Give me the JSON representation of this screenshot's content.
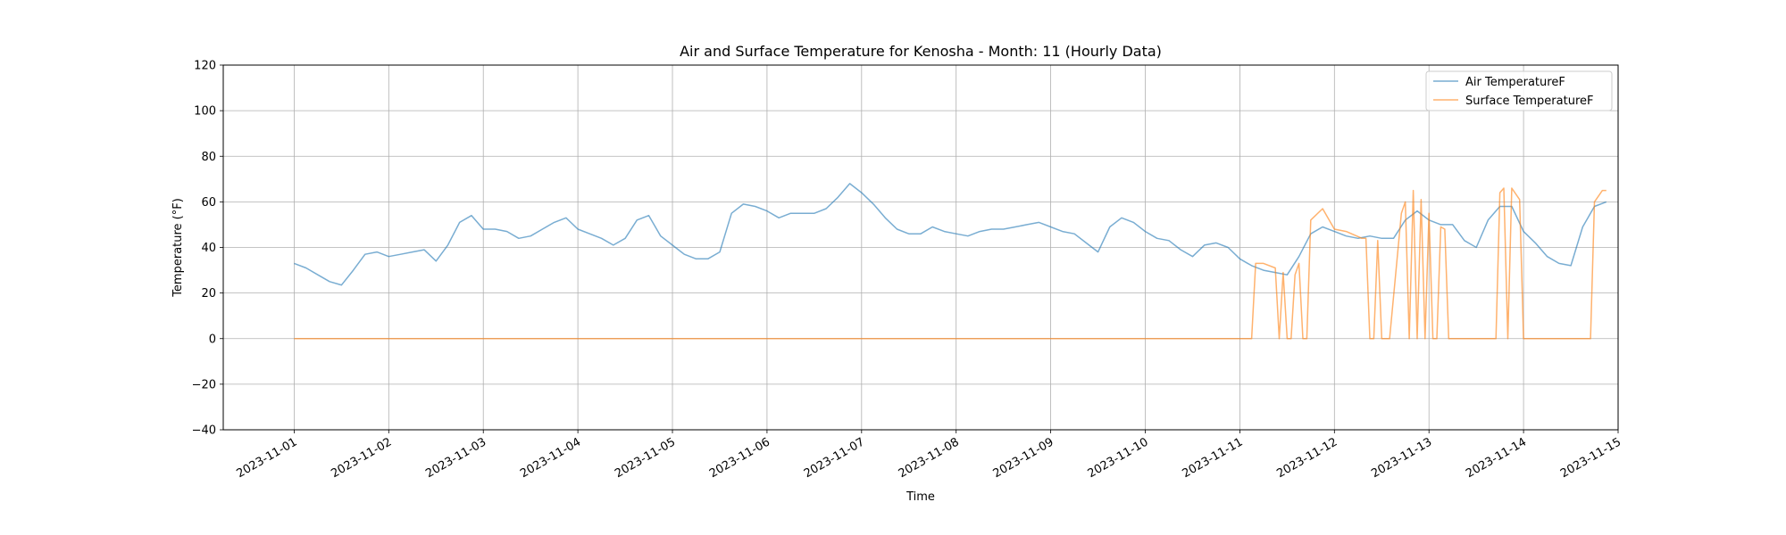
{
  "chart_data": {
    "type": "line",
    "title": "Air and Surface Temperature for Kenosha - Month: 11 (Hourly Data)",
    "xlabel": "Time",
    "ylabel": "Temperature (°F)",
    "ylim": [
      -40,
      120
    ],
    "xlim": [
      "2023-10-31T06:00",
      "2023-11-15T00:00"
    ],
    "y_ticks": [
      -40,
      -20,
      0,
      20,
      40,
      60,
      80,
      100,
      120
    ],
    "y_tick_labels": [
      "−40",
      "−20",
      "0",
      "20",
      "40",
      "60",
      "80",
      "100",
      "120"
    ],
    "x_ticks": [
      "2023-11-01",
      "2023-11-02",
      "2023-11-03",
      "2023-11-04",
      "2023-11-05",
      "2023-11-06",
      "2023-11-07",
      "2023-11-08",
      "2023-11-09",
      "2023-11-10",
      "2023-11-11",
      "2023-11-12",
      "2023-11-13",
      "2023-11-14",
      "2023-11-15"
    ],
    "grid": true,
    "legend_position": "top-right",
    "series": [
      {
        "name": "Air TemperatureF",
        "color": "#1f77b4",
        "points": [
          [
            "2023-11-01T00:00",
            33
          ],
          [
            "2023-11-01T03:00",
            31
          ],
          [
            "2023-11-01T06:00",
            28
          ],
          [
            "2023-11-01T09:00",
            25
          ],
          [
            "2023-11-01T12:00",
            23.5
          ],
          [
            "2023-11-01T15:00",
            30
          ],
          [
            "2023-11-01T18:00",
            37
          ],
          [
            "2023-11-01T21:00",
            38
          ],
          [
            "2023-11-02T00:00",
            36
          ],
          [
            "2023-11-02T03:00",
            37
          ],
          [
            "2023-11-02T06:00",
            38
          ],
          [
            "2023-11-02T09:00",
            39
          ],
          [
            "2023-11-02T12:00",
            34
          ],
          [
            "2023-11-02T15:00",
            41
          ],
          [
            "2023-11-02T18:00",
            51
          ],
          [
            "2023-11-02T21:00",
            54
          ],
          [
            "2023-11-03T00:00",
            48
          ],
          [
            "2023-11-03T03:00",
            48
          ],
          [
            "2023-11-03T06:00",
            47
          ],
          [
            "2023-11-03T09:00",
            44
          ],
          [
            "2023-11-03T12:00",
            45
          ],
          [
            "2023-11-03T15:00",
            48
          ],
          [
            "2023-11-03T18:00",
            51
          ],
          [
            "2023-11-03T21:00",
            53
          ],
          [
            "2023-11-04T00:00",
            48
          ],
          [
            "2023-11-04T03:00",
            46
          ],
          [
            "2023-11-04T06:00",
            44
          ],
          [
            "2023-11-04T09:00",
            41
          ],
          [
            "2023-11-04T12:00",
            44
          ],
          [
            "2023-11-04T15:00",
            52
          ],
          [
            "2023-11-04T18:00",
            54
          ],
          [
            "2023-11-04T21:00",
            45
          ],
          [
            "2023-11-05T00:00",
            41
          ],
          [
            "2023-11-05T03:00",
            37
          ],
          [
            "2023-11-05T06:00",
            35
          ],
          [
            "2023-11-05T09:00",
            35
          ],
          [
            "2023-11-05T12:00",
            38
          ],
          [
            "2023-11-05T15:00",
            55
          ],
          [
            "2023-11-05T18:00",
            59
          ],
          [
            "2023-11-05T21:00",
            58
          ],
          [
            "2023-11-06T00:00",
            56
          ],
          [
            "2023-11-06T03:00",
            53
          ],
          [
            "2023-11-06T06:00",
            55
          ],
          [
            "2023-11-06T09:00",
            55
          ],
          [
            "2023-11-06T12:00",
            55
          ],
          [
            "2023-11-06T15:00",
            57
          ],
          [
            "2023-11-06T18:00",
            62
          ],
          [
            "2023-11-06T21:00",
            68
          ],
          [
            "2023-11-07T00:00",
            64
          ],
          [
            "2023-11-07T03:00",
            59
          ],
          [
            "2023-11-07T06:00",
            53
          ],
          [
            "2023-11-07T09:00",
            48
          ],
          [
            "2023-11-07T12:00",
            46
          ],
          [
            "2023-11-07T15:00",
            46
          ],
          [
            "2023-11-07T18:00",
            49
          ],
          [
            "2023-11-07T21:00",
            47
          ],
          [
            "2023-11-08T00:00",
            46
          ],
          [
            "2023-11-08T03:00",
            45
          ],
          [
            "2023-11-08T06:00",
            47
          ],
          [
            "2023-11-08T09:00",
            48
          ],
          [
            "2023-11-08T12:00",
            48
          ],
          [
            "2023-11-08T15:00",
            49
          ],
          [
            "2023-11-08T18:00",
            50
          ],
          [
            "2023-11-08T21:00",
            51
          ],
          [
            "2023-11-09T00:00",
            49
          ],
          [
            "2023-11-09T03:00",
            47
          ],
          [
            "2023-11-09T06:00",
            46
          ],
          [
            "2023-11-09T09:00",
            42
          ],
          [
            "2023-11-09T12:00",
            38
          ],
          [
            "2023-11-09T15:00",
            49
          ],
          [
            "2023-11-09T18:00",
            53
          ],
          [
            "2023-11-09T21:00",
            51
          ],
          [
            "2023-11-10T00:00",
            47
          ],
          [
            "2023-11-10T03:00",
            44
          ],
          [
            "2023-11-10T06:00",
            43
          ],
          [
            "2023-11-10T09:00",
            39
          ],
          [
            "2023-11-10T12:00",
            36
          ],
          [
            "2023-11-10T15:00",
            41
          ],
          [
            "2023-11-10T18:00",
            42
          ],
          [
            "2023-11-10T21:00",
            40
          ],
          [
            "2023-11-11T00:00",
            35
          ],
          [
            "2023-11-11T03:00",
            32
          ],
          [
            "2023-11-11T06:00",
            30
          ],
          [
            "2023-11-11T09:00",
            29
          ],
          [
            "2023-11-11T12:00",
            28
          ],
          [
            "2023-11-11T15:00",
            36
          ],
          [
            "2023-11-11T18:00",
            46
          ],
          [
            "2023-11-11T21:00",
            49
          ],
          [
            "2023-11-12T00:00",
            47
          ],
          [
            "2023-11-12T03:00",
            45
          ],
          [
            "2023-11-12T06:00",
            44
          ],
          [
            "2023-11-12T09:00",
            45
          ],
          [
            "2023-11-12T12:00",
            44
          ],
          [
            "2023-11-12T15:00",
            44
          ],
          [
            "2023-11-12T18:00",
            52
          ],
          [
            "2023-11-12T21:00",
            56
          ],
          [
            "2023-11-13T00:00",
            52
          ],
          [
            "2023-11-13T03:00",
            50
          ],
          [
            "2023-11-13T06:00",
            50
          ],
          [
            "2023-11-13T09:00",
            43
          ],
          [
            "2023-11-13T12:00",
            40
          ],
          [
            "2023-11-13T15:00",
            52
          ],
          [
            "2023-11-13T18:00",
            58
          ],
          [
            "2023-11-13T21:00",
            58
          ],
          [
            "2023-11-14T00:00",
            47
          ],
          [
            "2023-11-14T03:00",
            42
          ],
          [
            "2023-11-14T06:00",
            36
          ],
          [
            "2023-11-14T09:00",
            33
          ],
          [
            "2023-11-14T12:00",
            32
          ],
          [
            "2023-11-14T15:00",
            49
          ],
          [
            "2023-11-14T18:00",
            58
          ],
          [
            "2023-11-14T21:00",
            60
          ]
        ]
      },
      {
        "name": "Surface TemperatureF",
        "color": "#ff7f0e",
        "points": [
          [
            "2023-11-01T00:00",
            0
          ],
          [
            "2023-11-11T03:00",
            0
          ],
          [
            "2023-11-11T04:00",
            33
          ],
          [
            "2023-11-11T06:00",
            33
          ],
          [
            "2023-11-11T09:00",
            31
          ],
          [
            "2023-11-11T10:00",
            0
          ],
          [
            "2023-11-11T11:00",
            29
          ],
          [
            "2023-11-11T12:00",
            0
          ],
          [
            "2023-11-11T13:00",
            0
          ],
          [
            "2023-11-11T14:00",
            28
          ],
          [
            "2023-11-11T15:00",
            33
          ],
          [
            "2023-11-11T16:00",
            0
          ],
          [
            "2023-11-11T17:00",
            0
          ],
          [
            "2023-11-11T18:00",
            52
          ],
          [
            "2023-11-11T21:00",
            57
          ],
          [
            "2023-11-12T00:00",
            48
          ],
          [
            "2023-11-12T03:00",
            47
          ],
          [
            "2023-11-12T07:00",
            44
          ],
          [
            "2023-11-12T08:00",
            44
          ],
          [
            "2023-11-12T09:00",
            0
          ],
          [
            "2023-11-12T10:00",
            0
          ],
          [
            "2023-11-12T11:00",
            43
          ],
          [
            "2023-11-12T12:00",
            0
          ],
          [
            "2023-11-12T14:00",
            0
          ],
          [
            "2023-11-12T17:00",
            55
          ],
          [
            "2023-11-12T18:00",
            60
          ],
          [
            "2023-11-12T19:00",
            0
          ],
          [
            "2023-11-12T20:00",
            65
          ],
          [
            "2023-11-12T21:00",
            0
          ],
          [
            "2023-11-12T22:00",
            61
          ],
          [
            "2023-11-12T23:00",
            0
          ],
          [
            "2023-11-13T00:00",
            55
          ],
          [
            "2023-11-13T01:00",
            0
          ],
          [
            "2023-11-13T02:00",
            0
          ],
          [
            "2023-11-13T03:00",
            49
          ],
          [
            "2023-11-13T04:00",
            48
          ],
          [
            "2023-11-13T05:00",
            0
          ],
          [
            "2023-11-13T17:00",
            0
          ],
          [
            "2023-11-13T18:00",
            64
          ],
          [
            "2023-11-13T19:00",
            66
          ],
          [
            "2023-11-13T20:00",
            0
          ],
          [
            "2023-11-13T21:00",
            66
          ],
          [
            "2023-11-13T23:00",
            61
          ],
          [
            "2023-11-14T00:00",
            0
          ],
          [
            "2023-11-14T17:00",
            0
          ],
          [
            "2023-11-14T18:00",
            60
          ],
          [
            "2023-11-14T20:00",
            65
          ],
          [
            "2023-11-14T21:00",
            65
          ]
        ]
      }
    ]
  }
}
